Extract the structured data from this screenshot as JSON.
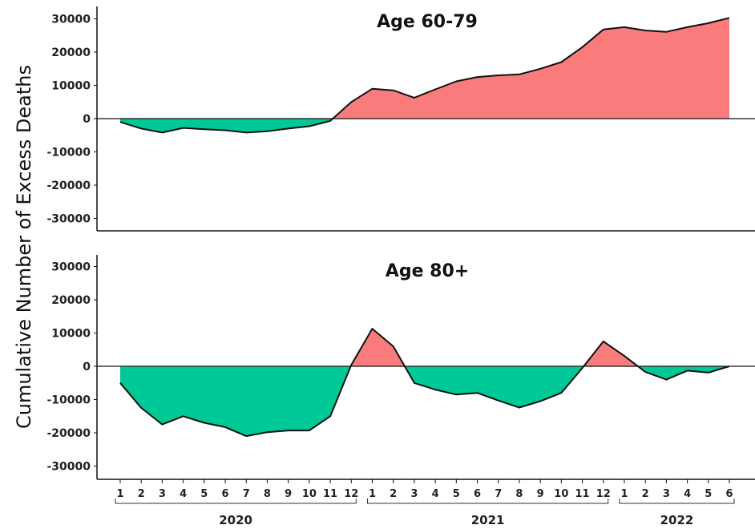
{
  "chart_data": {
    "type": "area",
    "ylabel": "Cumulative Number of Excess Deaths",
    "ylim": [
      -33000,
      33000
    ],
    "yticks": [
      30000,
      20000,
      10000,
      0,
      -10000,
      -20000,
      -30000
    ],
    "ytick_labels": [
      "30000",
      "20000",
      "10000",
      "0",
      "-10000",
      "-20000",
      "-30000"
    ],
    "x_month_labels": [
      "1",
      "2",
      "3",
      "4",
      "5",
      "6",
      "7",
      "8",
      "9",
      "10",
      "11",
      "12",
      "1",
      "2",
      "3",
      "4",
      "5",
      "6",
      "7",
      "8",
      "9",
      "10",
      "11",
      "12",
      "1",
      "2",
      "3",
      "4",
      "5",
      "6"
    ],
    "year_groups": [
      {
        "label": "2020",
        "start": 0,
        "end": 11
      },
      {
        "label": "2021",
        "start": 12,
        "end": 23
      },
      {
        "label": "2022",
        "start": 24,
        "end": 29
      }
    ],
    "positive_color": "#F97B7B",
    "negative_color": "#00C896",
    "panels": [
      {
        "title": "Age 60-79",
        "values": [
          -1000,
          -3000,
          -4200,
          -2800,
          -3200,
          -3500,
          -4200,
          -3800,
          -3000,
          -2300,
          -700,
          5000,
          9000,
          8500,
          6300,
          8800,
          11200,
          12500,
          13000,
          13300,
          15000,
          17000,
          21500,
          26800,
          27500,
          26500,
          26100,
          27500,
          28700,
          30300
        ]
      },
      {
        "title": "Age 80+",
        "values": [
          -5000,
          -12500,
          -17500,
          -15000,
          -17000,
          -18300,
          -21000,
          -19800,
          -19300,
          -19300,
          -15000,
          400,
          11300,
          6000,
          -5000,
          -7000,
          -8500,
          -8000,
          -10300,
          -12400,
          -10500,
          -8000,
          -500,
          7500,
          3100,
          -1700,
          -4000,
          -1300,
          -1900,
          0
        ]
      }
    ]
  }
}
